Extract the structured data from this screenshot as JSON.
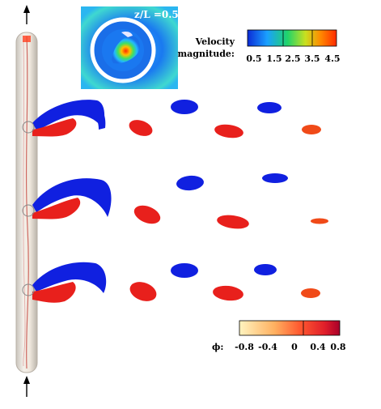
{
  "inset": {
    "label": "z/L =0.5"
  },
  "velocity_legend": {
    "title_line1": "Velocity",
    "title_line2": "magnitude:",
    "ticks": [
      "0.5",
      "1.5",
      "2.5",
      "3.5",
      "4.5"
    ],
    "colors": [
      "#0b2bd6",
      "#1aa0ff",
      "#20d46a",
      "#c8e020",
      "#ff8a00",
      "#ff2a00"
    ]
  },
  "phi_legend": {
    "title": "ϕ:",
    "ticks": [
      "-0.8",
      "-0.4",
      "0",
      "0.4",
      "0.8"
    ],
    "colors": [
      "#fff1b0",
      "#ffb060",
      "#ff6a30",
      "#e01e2a",
      "#a8002a"
    ]
  },
  "colors": {
    "negative_vortex": "#1020e0",
    "positive_vortex": "#e8201c",
    "cylinder": "#e8e2d8"
  }
}
